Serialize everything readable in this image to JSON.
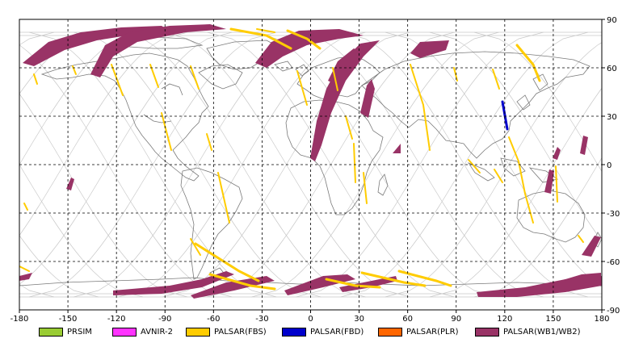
{
  "map": {
    "x_ticks": [
      "-180",
      "-150",
      "-120",
      "-90",
      "-60",
      "-30",
      "0",
      "30",
      "60",
      "90",
      "120",
      "150",
      "180"
    ],
    "y_ticks_right": [
      "90",
      "60",
      "30",
      "0",
      "-30",
      "-60",
      "-90"
    ]
  },
  "legend": [
    {
      "label": "PRSIM",
      "color": "#99cc33"
    },
    {
      "label": "AVNIR-2",
      "color": "#ff33ff"
    },
    {
      "label": "PALSAR(FBS)",
      "color": "#ffcc00"
    },
    {
      "label": "PALSAR(FBD)",
      "color": "#0000cc"
    },
    {
      "label": "PALSAR(PLR)",
      "color": "#ff6600"
    },
    {
      "label": "PALSAR(WB1/WB2)",
      "color": "#993366"
    }
  ],
  "colors": {
    "wb": "#993366",
    "fbs": "#ffcc00",
    "fbd": "#0000cc",
    "orbit": "#c8c8c8",
    "coast": "#7a7a7a"
  }
}
